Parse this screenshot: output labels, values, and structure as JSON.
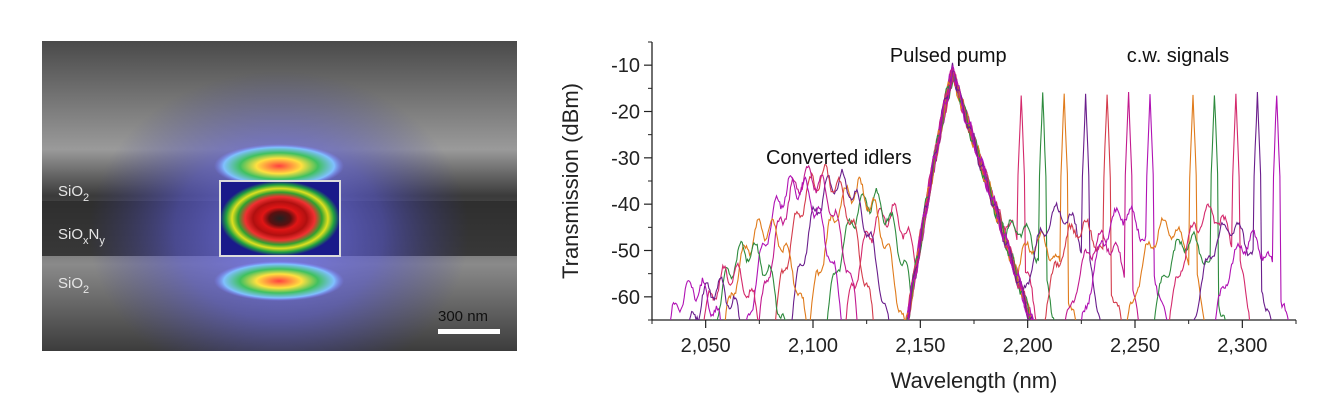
{
  "micrograph": {
    "labels": [
      "SiO",
      "2",
      "SiO",
      "x",
      "N",
      "y",
      "SiO",
      "2"
    ],
    "scale_bar": "300 nm"
  },
  "chart_data": {
    "type": "line",
    "xlabel": "Wavelength (nm)",
    "ylabel": "Transmission (dBm)",
    "xlim": [
      2025,
      2325
    ],
    "ylim": [
      -65,
      -5
    ],
    "xticks": [
      2050,
      2100,
      2150,
      2200,
      2250,
      2300
    ],
    "xtick_labels": [
      "2,050",
      "2,100",
      "2,150",
      "2,200",
      "2,250",
      "2,300"
    ],
    "yticks": [
      -60,
      -50,
      -40,
      -30,
      -20,
      -10
    ],
    "ytick_labels": [
      "-60",
      "-50",
      "-40",
      "-30",
      "-20",
      "-10"
    ],
    "annotations": [
      {
        "text": "Pulsed pump",
        "x": 2163,
        "y": -8
      },
      {
        "text": "c.w. signals",
        "x": 2270,
        "y": -8
      },
      {
        "text": "Converted idlers",
        "x": 2112,
        "y": -30
      }
    ],
    "grid": false,
    "legend": "none",
    "pump": {
      "center": 2165,
      "peak": -12
    },
    "series": [
      {
        "color": "#d42a6c",
        "signal": 2197,
        "idler": 2135,
        "idler_peak": -42
      },
      {
        "color": "#2e8b3e",
        "signal": 2207,
        "idler": 2127,
        "idler_peak": -39
      },
      {
        "color": "#e07b1c",
        "signal": 2217,
        "idler": 2120,
        "idler_peak": -37
      },
      {
        "color": "#6a1e8c",
        "signal": 2227,
        "idler": 2112,
        "idler_peak": -35
      },
      {
        "color": "#d43c4c",
        "signal": 2237,
        "idler": 2105,
        "idler_peak": -34
      },
      {
        "color": "#c21a8e",
        "signal": 2247,
        "idler": 2098,
        "idler_peak": -34
      },
      {
        "color": "#b012b4",
        "signal": 2257,
        "idler": 2092,
        "idler_peak": -36
      },
      {
        "color": "#e07b1c",
        "signal": 2277,
        "idler": 2078,
        "idler_peak": -45
      },
      {
        "color": "#2e8b3e",
        "signal": 2287,
        "idler": 2070,
        "idler_peak": -50
      },
      {
        "color": "#d42a6c",
        "signal": 2297,
        "idler": 2062,
        "idler_peak": -55
      },
      {
        "color": "#6a1e8c",
        "signal": 2307,
        "idler": 2055,
        "idler_peak": -58
      },
      {
        "color": "#b012b4",
        "signal": 2316,
        "idler": 2045,
        "idler_peak": -58
      }
    ]
  }
}
